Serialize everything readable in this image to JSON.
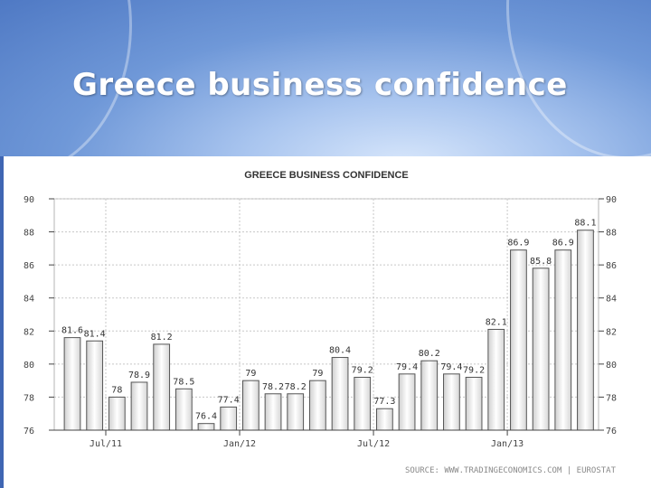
{
  "slide": {
    "title": "Greece business confidence",
    "colors": {
      "banner": "#6f98d8",
      "bar_fill_top": "#ffffff",
      "bar_fill_bottom": "#cfcfcf",
      "bar_stroke": "#555555"
    }
  },
  "source_text": "SOURCE: WWW.TRADINGECONOMICS.COM | EUROSTAT",
  "chart_data": {
    "type": "bar",
    "title": "GREECE BUSINESS CONFIDENCE",
    "xlabel": "",
    "ylabel": "",
    "ylim": [
      76,
      90
    ],
    "yticks": [
      76,
      78,
      80,
      82,
      84,
      86,
      88,
      90
    ],
    "grid": true,
    "values": [
      81.6,
      81.4,
      78,
      78.9,
      81.2,
      78.5,
      76.4,
      77.4,
      79,
      78.2,
      78.2,
      79,
      80.4,
      79.2,
      77.3,
      79.4,
      80.2,
      79.4,
      79.2,
      82.1,
      86.9,
      85.8,
      86.9,
      88.1
    ],
    "labels": [
      "81.6",
      "81.4",
      "78",
      "78.9",
      "81.2",
      "78.5",
      "76.4",
      "77.4",
      "79",
      "78.2",
      "78.2",
      "79",
      "80.4",
      "79.2",
      "77.3",
      "79.4",
      "80.2",
      "79.4",
      "79.2",
      "82.1",
      "86.9",
      "85.8",
      "86.9",
      "88.1"
    ],
    "x_tick_labels": [
      "Jul/11",
      "Jan/12",
      "Jul/12",
      "Jan/13"
    ],
    "x_tick_after_bar": [
      2,
      8,
      14,
      20
    ]
  }
}
